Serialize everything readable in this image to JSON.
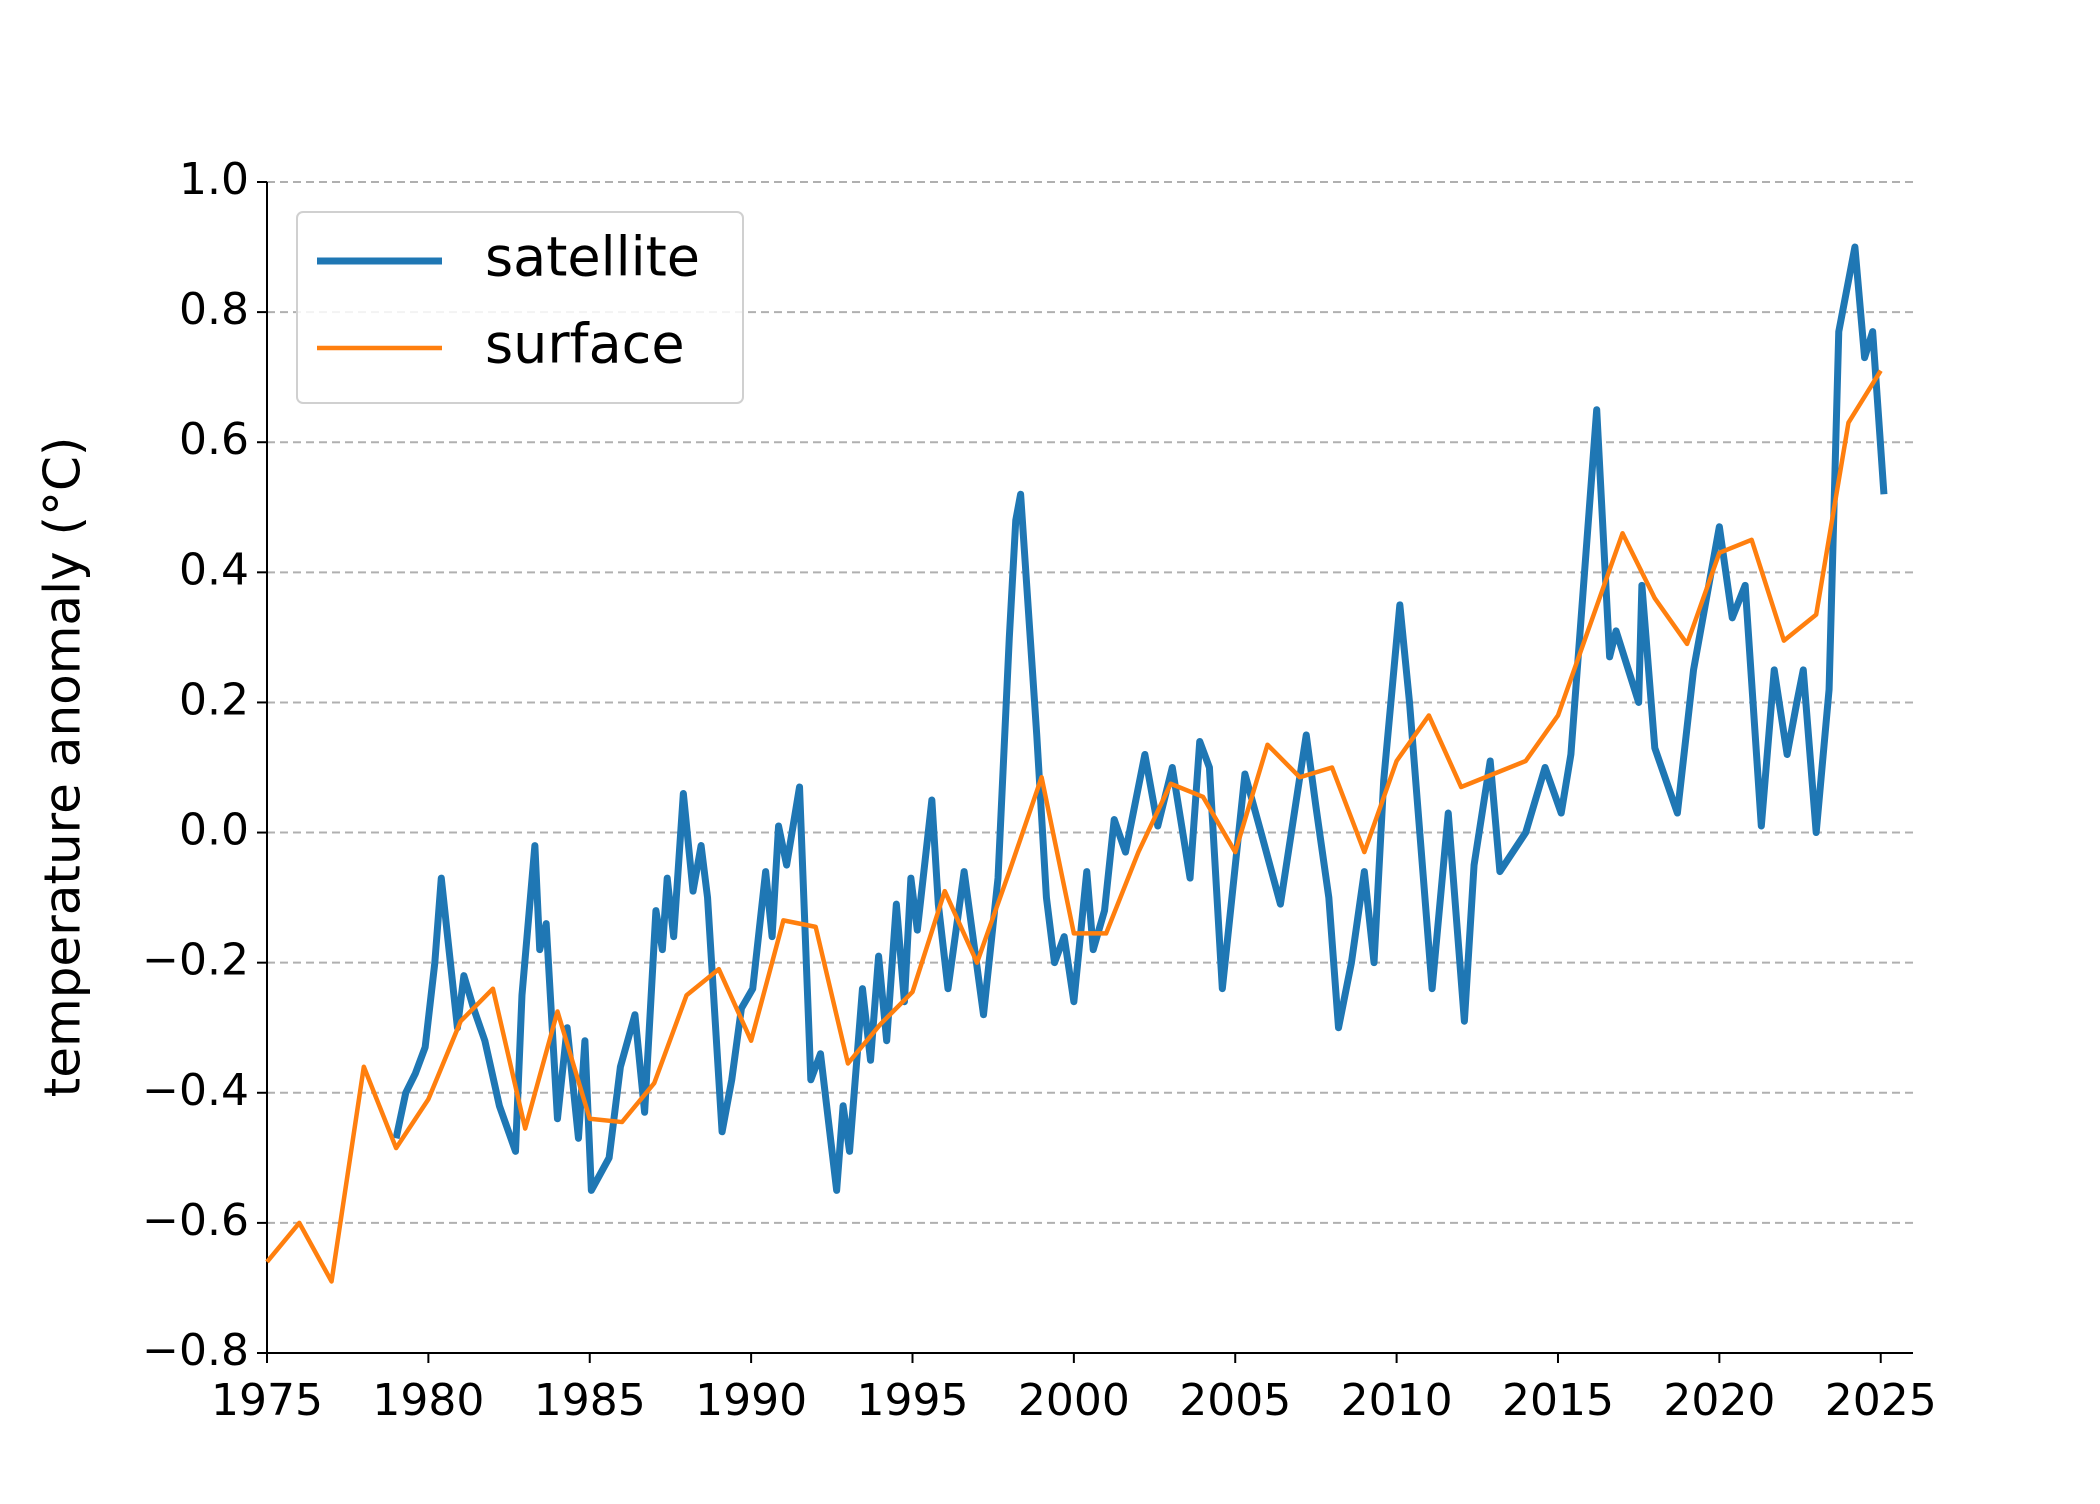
{
  "chart_data": {
    "type": "line",
    "ylabel": "temperature anomaly (°C)",
    "xlim": [
      1975,
      2026
    ],
    "ylim": [
      -0.8,
      1.0
    ],
    "xticks": [
      1975,
      1980,
      1985,
      1990,
      1995,
      2000,
      2005,
      2010,
      2015,
      2020,
      2025
    ],
    "yticks": [
      {
        "value": -0.8,
        "label": "−0.8"
      },
      {
        "value": -0.6,
        "label": "−0.6"
      },
      {
        "value": -0.4,
        "label": "−0.4"
      },
      {
        "value": -0.2,
        "label": "−0.2"
      },
      {
        "value": 0,
        "label": "0.0"
      },
      0.2,
      0.4,
      0.6,
      0.8,
      {
        "value": 1,
        "label": "1.0"
      }
    ],
    "grid": true,
    "legend": "upper left",
    "series": [
      {
        "name": "satellite",
        "color": "#1f77b4",
        "x": [
          1979.0,
          1979.3,
          1979.6,
          1979.9,
          1980.2,
          1980.4,
          1980.9,
          1981.1,
          1981.4,
          1981.75,
          1982.2,
          1982.7,
          1982.9,
          1983.3,
          1983.45,
          1983.65,
          1984.0,
          1984.3,
          1984.65,
          1984.85,
          1985.05,
          1985.6,
          1985.95,
          1986.4,
          1986.7,
          1987.05,
          1987.25,
          1987.4,
          1987.6,
          1987.9,
          1988.2,
          1988.45,
          1988.65,
          1989.1,
          1989.4,
          1989.7,
          1990.05,
          1990.45,
          1990.65,
          1990.85,
          1991.1,
          1991.5,
          1991.85,
          1992.15,
          1992.65,
          1992.85,
          1993.05,
          1993.45,
          1993.7,
          1993.95,
          1994.2,
          1994.5,
          1994.75,
          1994.95,
          1995.15,
          1995.6,
          1995.8,
          1996.1,
          1996.6,
          1997.2,
          1997.65,
          1998.0,
          1998.2,
          1998.35,
          1998.85,
          1999.15,
          1999.4,
          1999.7,
          2000.0,
          2000.4,
          2000.6,
          2000.95,
          2001.25,
          2001.6,
          2002.2,
          2002.6,
          2003.05,
          2003.6,
          2003.9,
          2004.2,
          2004.6,
          2005.3,
          2005.8,
          2006.4,
          2007.2,
          2007.5,
          2007.9,
          2008.2,
          2008.6,
          2009.0,
          2009.3,
          2009.6,
          2010.1,
          2010.4,
          2011.1,
          2011.6,
          2012.1,
          2012.4,
          2012.9,
          2013.2,
          2014.0,
          2014.6,
          2015.1,
          2015.4,
          2016.2,
          2016.6,
          2016.8,
          2017.5,
          2017.6,
          2018.0,
          2018.7,
          2019.2,
          2020.0,
          2020.4,
          2020.8,
          2021.3,
          2021.7,
          2022.1,
          2022.4,
          2022.6,
          2023.0,
          2023.4,
          2023.7,
          2024.2,
          2024.5,
          2024.75,
          2025.1
        ],
        "values": [
          -0.47,
          -0.4,
          -0.37,
          -0.33,
          -0.2,
          -0.07,
          -0.3,
          -0.22,
          -0.27,
          -0.32,
          -0.42,
          -0.49,
          -0.25,
          -0.02,
          -0.18,
          -0.14,
          -0.44,
          -0.3,
          -0.47,
          -0.32,
          -0.55,
          -0.5,
          -0.36,
          -0.28,
          -0.43,
          -0.12,
          -0.18,
          -0.07,
          -0.16,
          0.06,
          -0.09,
          -0.02,
          -0.1,
          -0.46,
          -0.38,
          -0.27,
          -0.24,
          -0.06,
          -0.16,
          0.01,
          -0.05,
          0.07,
          -0.38,
          -0.34,
          -0.55,
          -0.42,
          -0.49,
          -0.24,
          -0.35,
          -0.19,
          -0.32,
          -0.11,
          -0.26,
          -0.07,
          -0.15,
          0.05,
          -0.11,
          -0.24,
          -0.06,
          -0.28,
          -0.07,
          0.3,
          0.48,
          0.52,
          0.15,
          -0.1,
          -0.2,
          -0.16,
          -0.26,
          -0.06,
          -0.18,
          -0.12,
          0.02,
          -0.03,
          0.12,
          0.01,
          0.1,
          -0.07,
          0.14,
          0.1,
          -0.24,
          0.09,
          0.0,
          -0.11,
          0.15,
          0.04,
          -0.1,
          -0.3,
          -0.2,
          -0.06,
          -0.2,
          0.08,
          0.35,
          0.2,
          -0.24,
          0.03,
          -0.29,
          -0.05,
          0.11,
          -0.06,
          0.0,
          0.1,
          0.03,
          0.12,
          0.65,
          0.27,
          0.31,
          0.2,
          0.38,
          0.13,
          0.03,
          0.25,
          0.47,
          0.33,
          0.38,
          0.01,
          0.25,
          0.12,
          0.2,
          0.25,
          0.0,
          0.22,
          0.77,
          0.9,
          0.73,
          0.77,
          0.52
        ]
      },
      {
        "name": "surface",
        "color": "#ff7f0e",
        "x": [
          1975,
          1976,
          1977,
          1978,
          1979,
          1980,
          1981,
          1982,
          1983,
          1984,
          1985,
          1986,
          1987,
          1988,
          1989,
          1990,
          1991,
          1992,
          1993,
          1994,
          1995,
          1996,
          1997,
          1998,
          1999,
          2000,
          2001,
          2002,
          2003,
          2004,
          2005,
          2006,
          2007,
          2008,
          2009,
          2010,
          2011,
          2012,
          2013,
          2014,
          2015,
          2016,
          2017,
          2018,
          2019,
          2020,
          2021,
          2022,
          2023,
          2024,
          2025
        ],
        "values": [
          -0.66,
          -0.6,
          -0.69,
          -0.36,
          -0.485,
          -0.41,
          -0.29,
          -0.24,
          -0.455,
          -0.275,
          -0.44,
          -0.445,
          -0.385,
          -0.25,
          -0.21,
          -0.32,
          -0.135,
          -0.145,
          -0.355,
          -0.295,
          -0.245,
          -0.09,
          -0.2,
          -0.06,
          0.085,
          -0.155,
          -0.155,
          -0.03,
          0.075,
          0.055,
          -0.03,
          0.135,
          0.085,
          0.1,
          -0.03,
          0.11,
          0.18,
          0.07,
          0.09,
          0.11,
          0.18,
          0.32,
          0.46,
          0.36,
          0.29,
          0.43,
          0.45,
          0.295,
          0.335,
          0.63,
          0.71
        ]
      }
    ]
  }
}
